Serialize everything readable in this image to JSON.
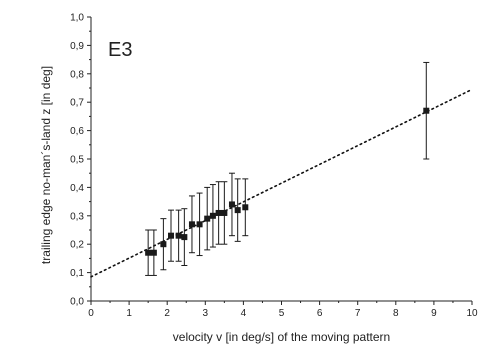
{
  "chart_data": {
    "type": "scatter",
    "panel_label": "E3",
    "xlabel": "velocity v [in deg/s] of the moving pattern",
    "ylabel": "trailing edge no-man´s-land z [in deg]",
    "xlim": [
      0,
      10
    ],
    "ylim": [
      0,
      1
    ],
    "x_ticks": [
      0,
      1,
      2,
      3,
      4,
      5,
      6,
      7,
      8,
      9,
      10
    ],
    "x_tick_labels": [
      "0",
      "1",
      "2",
      "3",
      "4",
      "5",
      "6",
      "7",
      "8",
      "9",
      "10"
    ],
    "y_ticks": [
      0,
      0.1,
      0.2,
      0.3,
      0.4,
      0.5,
      0.6,
      0.7,
      0.8,
      0.9,
      1.0
    ],
    "y_tick_labels": [
      "0,0",
      "0,1",
      "0,2",
      "0,3",
      "0,4",
      "0,5",
      "0,6",
      "0,7",
      "0,8",
      "0,9",
      "1,0"
    ],
    "grid": false,
    "marker_color": "#1a1a1a",
    "points": [
      {
        "x": 1.5,
        "y": 0.17,
        "err": 0.08
      },
      {
        "x": 1.65,
        "y": 0.17,
        "err": 0.08
      },
      {
        "x": 1.9,
        "y": 0.2,
        "err": 0.09
      },
      {
        "x": 2.1,
        "y": 0.23,
        "err": 0.09
      },
      {
        "x": 2.3,
        "y": 0.23,
        "err": 0.09
      },
      {
        "x": 2.45,
        "y": 0.225,
        "err": 0.1
      },
      {
        "x": 2.65,
        "y": 0.27,
        "err": 0.1
      },
      {
        "x": 2.85,
        "y": 0.27,
        "err": 0.11
      },
      {
        "x": 3.05,
        "y": 0.29,
        "err": 0.11
      },
      {
        "x": 3.2,
        "y": 0.3,
        "err": 0.11
      },
      {
        "x": 3.35,
        "y": 0.31,
        "err": 0.11
      },
      {
        "x": 3.5,
        "y": 0.31,
        "err": 0.11
      },
      {
        "x": 3.7,
        "y": 0.34,
        "err": 0.11
      },
      {
        "x": 3.85,
        "y": 0.32,
        "err": 0.11
      },
      {
        "x": 4.05,
        "y": 0.33,
        "err": 0.1
      },
      {
        "x": 8.8,
        "y": 0.67,
        "err": 0.17
      }
    ],
    "fit_line": {
      "style": "dotted",
      "x": [
        0,
        10
      ],
      "y": [
        0.085,
        0.745
      ]
    }
  }
}
